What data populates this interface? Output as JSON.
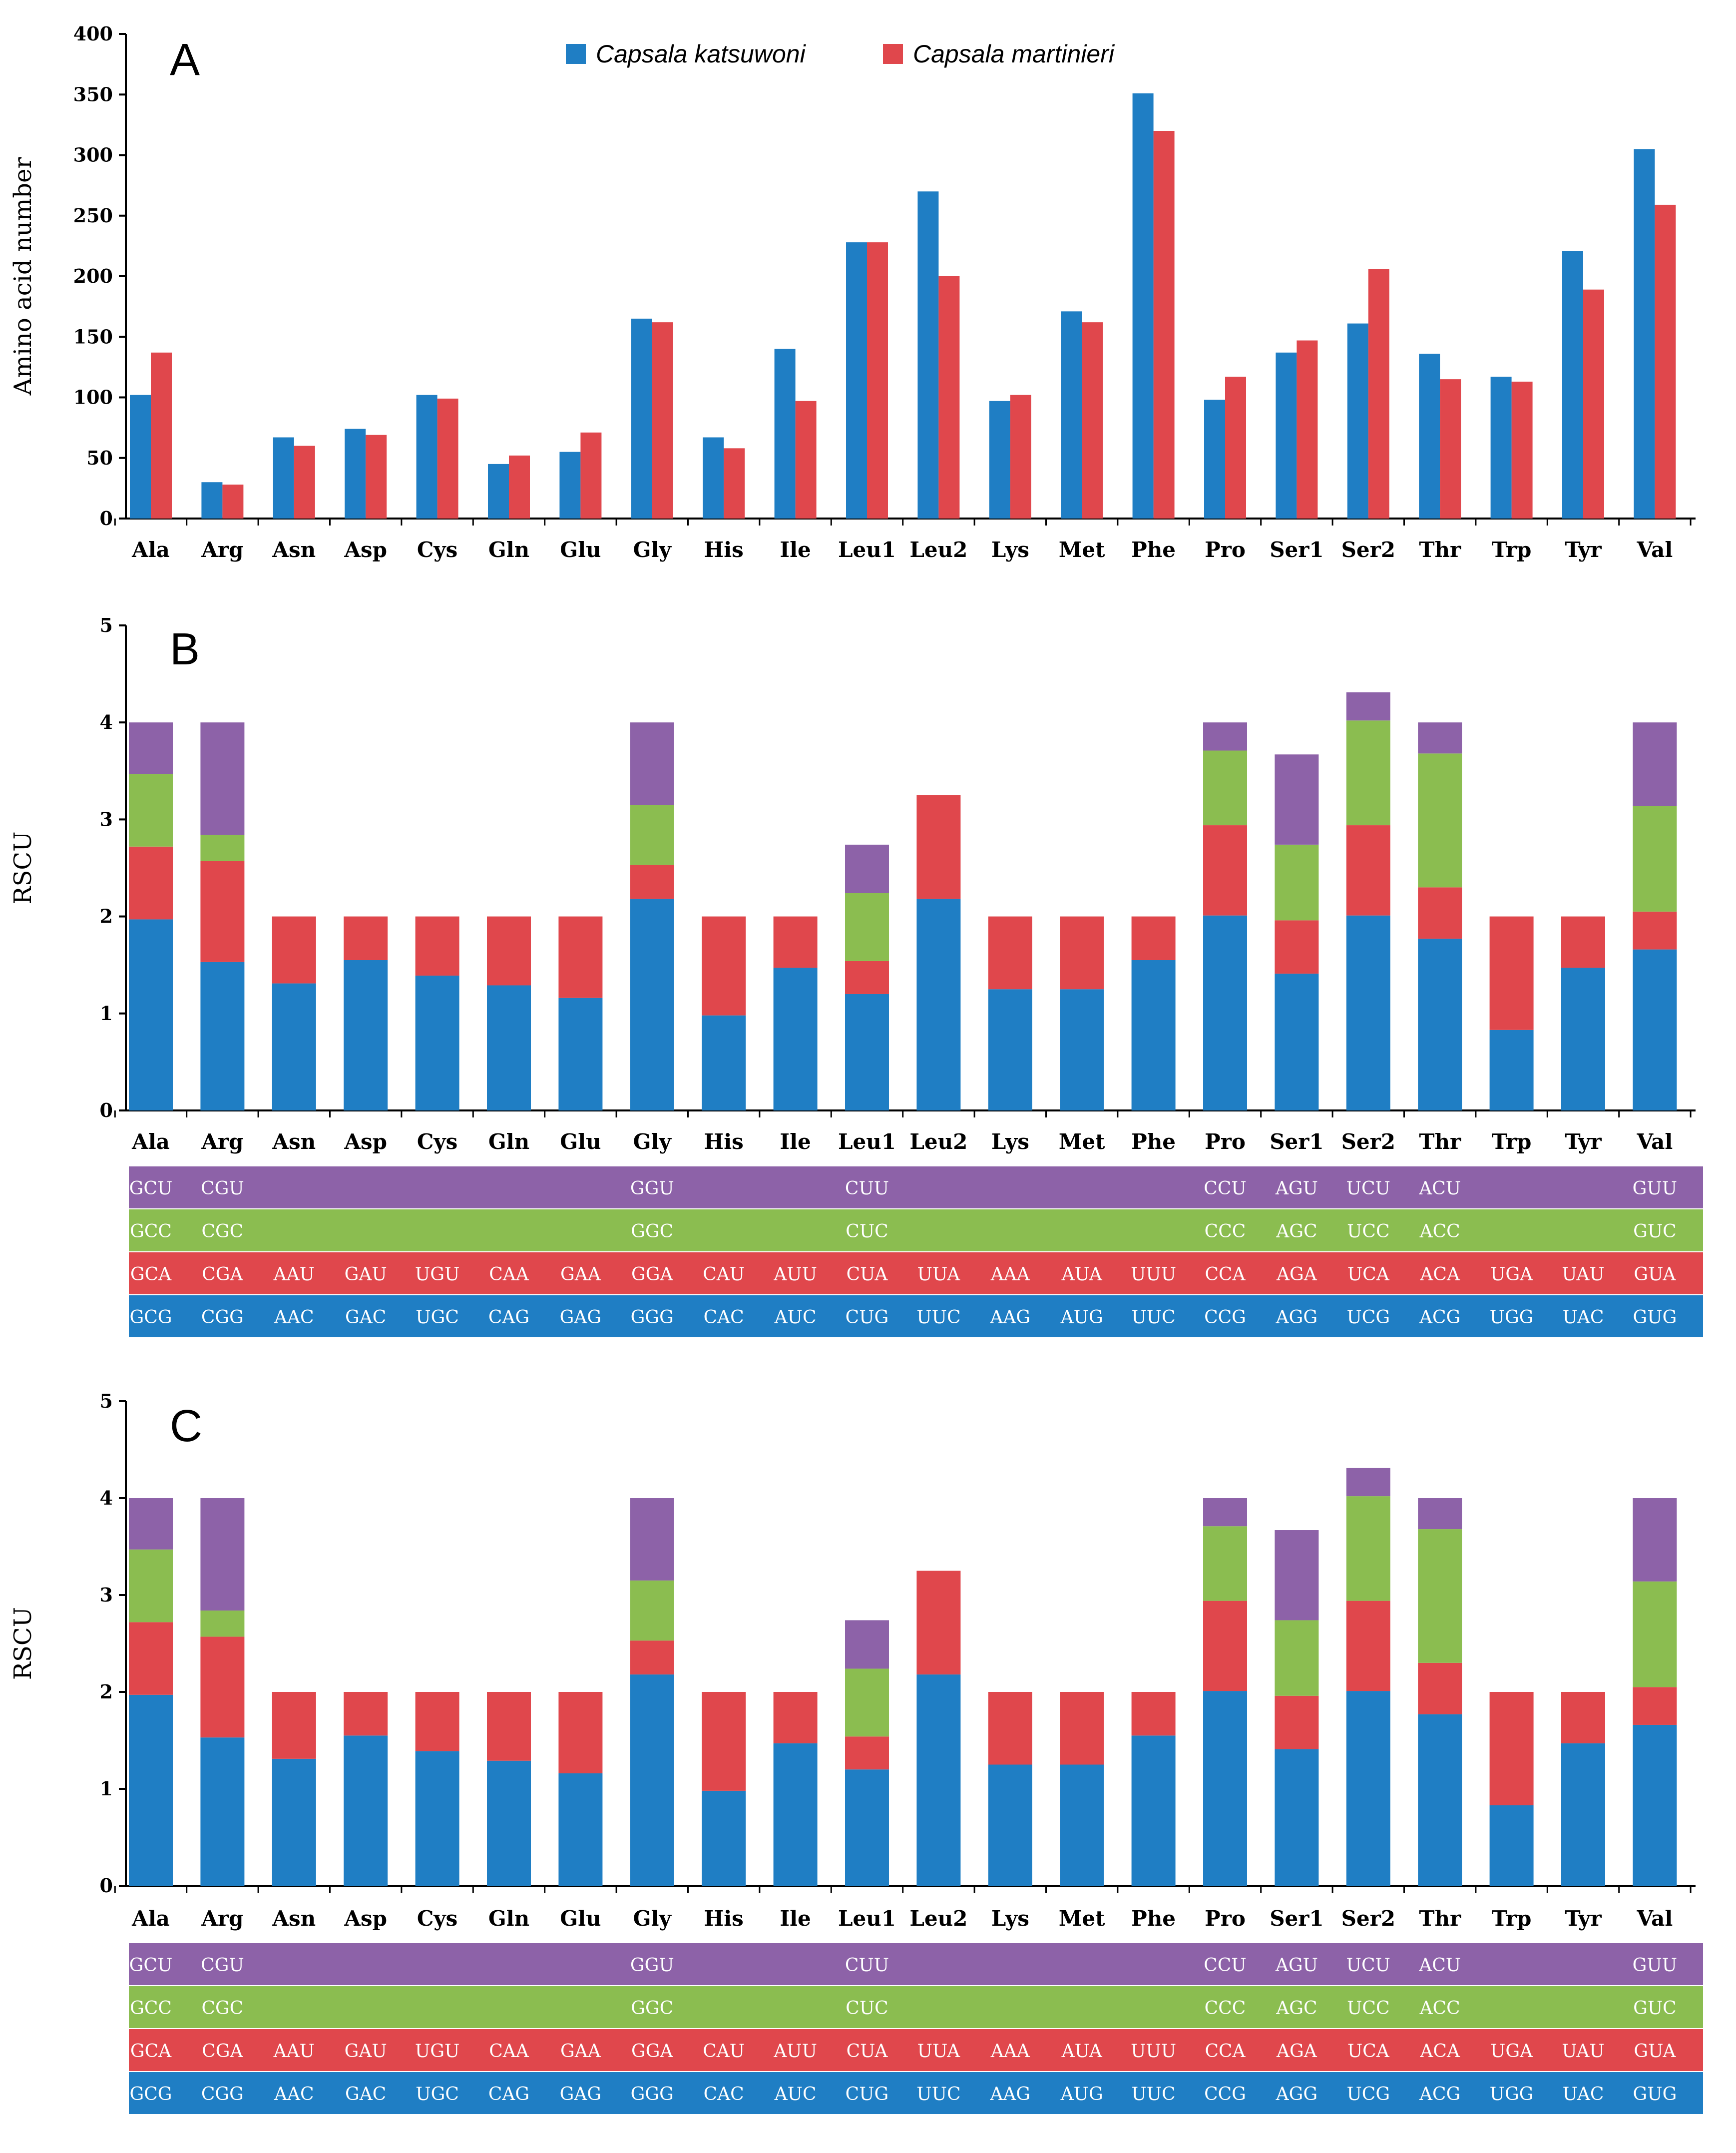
{
  "colors": {
    "blue": "#1f7ec4",
    "red": "#e0474c",
    "green": "#8bbd50",
    "purple": "#8d62a8",
    "axis": "#000000"
  },
  "legend": {
    "series1": "Capsala katsuwoni",
    "series2": "Capsala martinieri"
  },
  "chart_data": [
    {
      "panel": "A",
      "type": "bar",
      "ylabel": "Amino acid number",
      "ylim": [
        0,
        400
      ],
      "yticks": [
        "0",
        "50",
        "100",
        "150",
        "200",
        "250",
        "300",
        "350",
        "400"
      ],
      "categories": [
        "Ala",
        "Arg",
        "Asn",
        "Asp",
        "Cys",
        "Gln",
        "Glu",
        "Gly",
        "His",
        "Ile",
        "Leu1",
        "Leu2",
        "Lys",
        "Met",
        "Phe",
        "Pro",
        "Ser1",
        "Ser2",
        "Thr",
        "Trp",
        "Tyr",
        "Val"
      ],
      "series": [
        {
          "name": "Capsala katsuwoni",
          "values": [
            102,
            30,
            67,
            74,
            102,
            45,
            55,
            165,
            67,
            140,
            228,
            270,
            97,
            171,
            351,
            98,
            137,
            161,
            136,
            117,
            221,
            305
          ]
        },
        {
          "name": "Capsala martinieri",
          "values": [
            137,
            28,
            60,
            69,
            99,
            52,
            71,
            162,
            58,
            97,
            228,
            200,
            102,
            162,
            320,
            117,
            147,
            206,
            115,
            113,
            189,
            259
          ]
        }
      ]
    },
    {
      "panel": "B",
      "type": "bar",
      "stacked": true,
      "ylabel": "RSCU",
      "ylim": [
        0,
        5
      ],
      "yticks": [
        "0",
        "1",
        "2",
        "3",
        "4",
        "5"
      ],
      "categories": [
        "Ala",
        "Arg",
        "Asn",
        "Asp",
        "Cys",
        "Gln",
        "Glu",
        "Gly",
        "His",
        "Ile",
        "Leu1",
        "Leu2",
        "Lys",
        "Met",
        "Phe",
        "Pro",
        "Ser1",
        "Ser2",
        "Thr",
        "Trp",
        "Tyr",
        "Val"
      ],
      "series": [
        {
          "name": "codon 1 (blue)",
          "values": [
            1.97,
            1.53,
            1.31,
            1.55,
            1.39,
            1.29,
            1.16,
            2.18,
            0.98,
            1.47,
            1.2,
            2.18,
            1.25,
            1.25,
            1.55,
            2.01,
            1.41,
            2.01,
            1.77,
            0.83,
            1.47,
            1.66
          ]
        },
        {
          "name": "codon 2 (red)",
          "values": [
            0.75,
            1.04,
            0.69,
            0.45,
            0.61,
            0.71,
            0.84,
            0.35,
            1.02,
            0.53,
            0.34,
            1.07,
            0.75,
            0.75,
            0.45,
            0.93,
            0.55,
            0.93,
            0.53,
            1.17,
            0.53,
            0.39
          ]
        },
        {
          "name": "codon 3 (green)",
          "values": [
            0.75,
            0.27,
            0,
            0,
            0,
            0,
            0,
            0.62,
            0,
            0,
            0.7,
            0,
            0,
            0,
            0,
            0.77,
            0.78,
            1.08,
            1.38,
            0,
            0,
            1.09
          ]
        },
        {
          "name": "codon 4 (purple)",
          "values": [
            0.53,
            1.16,
            0,
            0,
            0,
            0,
            0,
            0.85,
            0,
            0,
            0.5,
            0,
            0,
            0,
            0,
            0.29,
            0.93,
            0.29,
            0.32,
            0,
            0,
            0.86
          ]
        }
      ],
      "codon_table": {
        "purple": [
          "GCU",
          "CGU",
          "",
          "",
          "",
          "",
          "",
          "GGU",
          "",
          "",
          "CUU",
          "",
          "",
          "",
          "",
          "CCU",
          "AGU",
          "UCU",
          "ACU",
          "",
          "",
          "GUU"
        ],
        "green": [
          "GCC",
          "CGC",
          "",
          "",
          "",
          "",
          "",
          "GGC",
          "",
          "",
          "CUC",
          "",
          "",
          "",
          "",
          "CCC",
          "AGC",
          "UCC",
          "ACC",
          "",
          "",
          "GUC"
        ],
        "red": [
          "GCA",
          "CGA",
          "AAU",
          "GAU",
          "UGU",
          "CAA",
          "GAA",
          "GGA",
          "CAU",
          "AUU",
          "CUA",
          "UUA",
          "AAA",
          "AUA",
          "UUU",
          "CCA",
          "AGA",
          "UCA",
          "ACA",
          "UGA",
          "UAU",
          "GUA"
        ],
        "blue": [
          "GCG",
          "CGG",
          "AAC",
          "GAC",
          "UGC",
          "CAG",
          "GAG",
          "GGG",
          "CAC",
          "AUC",
          "CUG",
          "UUC",
          "AAG",
          "AUG",
          "UUC",
          "CCG",
          "AGG",
          "UCG",
          "ACG",
          "UGG",
          "UAC",
          "GUG"
        ]
      }
    },
    {
      "panel": "C",
      "type": "bar",
      "stacked": true,
      "ylabel": "RSCU",
      "ylim": [
        0,
        5
      ],
      "yticks": [
        "0",
        "1",
        "2",
        "3",
        "4",
        "5"
      ],
      "categories": [
        "Ala",
        "Arg",
        "Asn",
        "Asp",
        "Cys",
        "Gln",
        "Glu",
        "Gly",
        "His",
        "Ile",
        "Leu1",
        "Leu2",
        "Lys",
        "Met",
        "Phe",
        "Pro",
        "Ser1",
        "Ser2",
        "Thr",
        "Trp",
        "Tyr",
        "Val"
      ],
      "series": [
        {
          "name": "codon 1 (blue)",
          "values": [
            1.97,
            1.53,
            1.31,
            1.55,
            1.39,
            1.29,
            1.16,
            2.18,
            0.98,
            1.47,
            1.2,
            2.18,
            1.25,
            1.25,
            1.55,
            2.01,
            1.41,
            2.01,
            1.77,
            0.83,
            1.47,
            1.66
          ]
        },
        {
          "name": "codon 2 (red)",
          "values": [
            0.75,
            1.04,
            0.69,
            0.45,
            0.61,
            0.71,
            0.84,
            0.35,
            1.02,
            0.53,
            0.34,
            1.07,
            0.75,
            0.75,
            0.45,
            0.93,
            0.55,
            0.93,
            0.53,
            1.17,
            0.53,
            0.39
          ]
        },
        {
          "name": "codon 3 (green)",
          "values": [
            0.75,
            0.27,
            0,
            0,
            0,
            0,
            0,
            0.62,
            0,
            0,
            0.7,
            0,
            0,
            0,
            0,
            0.77,
            0.78,
            1.08,
            1.38,
            0,
            0,
            1.09
          ]
        },
        {
          "name": "codon 4 (purple)",
          "values": [
            0.53,
            1.16,
            0,
            0,
            0,
            0,
            0,
            0.85,
            0,
            0,
            0.5,
            0,
            0,
            0,
            0,
            0.29,
            0.93,
            0.29,
            0.32,
            0,
            0,
            0.86
          ]
        }
      ],
      "codon_table": {
        "purple": [
          "GCU",
          "CGU",
          "",
          "",
          "",
          "",
          "",
          "GGU",
          "",
          "",
          "CUU",
          "",
          "",
          "",
          "",
          "CCU",
          "AGU",
          "UCU",
          "ACU",
          "",
          "",
          "GUU"
        ],
        "green": [
          "GCC",
          "CGC",
          "",
          "",
          "",
          "",
          "",
          "GGC",
          "",
          "",
          "CUC",
          "",
          "",
          "",
          "",
          "CCC",
          "AGC",
          "UCC",
          "ACC",
          "",
          "",
          "GUC"
        ],
        "red": [
          "GCA",
          "CGA",
          "AAU",
          "GAU",
          "UGU",
          "CAA",
          "GAA",
          "GGA",
          "CAU",
          "AUU",
          "CUA",
          "UUA",
          "AAA",
          "AUA",
          "UUU",
          "CCA",
          "AGA",
          "UCA",
          "ACA",
          "UGA",
          "UAU",
          "GUA"
        ],
        "blue": [
          "GCG",
          "CGG",
          "AAC",
          "GAC",
          "UGC",
          "CAG",
          "GAG",
          "GGG",
          "CAC",
          "AUC",
          "CUG",
          "UUC",
          "AAG",
          "AUG",
          "UUC",
          "CCG",
          "AGG",
          "UCG",
          "ACG",
          "UGG",
          "UAC",
          "GUG"
        ]
      }
    }
  ]
}
